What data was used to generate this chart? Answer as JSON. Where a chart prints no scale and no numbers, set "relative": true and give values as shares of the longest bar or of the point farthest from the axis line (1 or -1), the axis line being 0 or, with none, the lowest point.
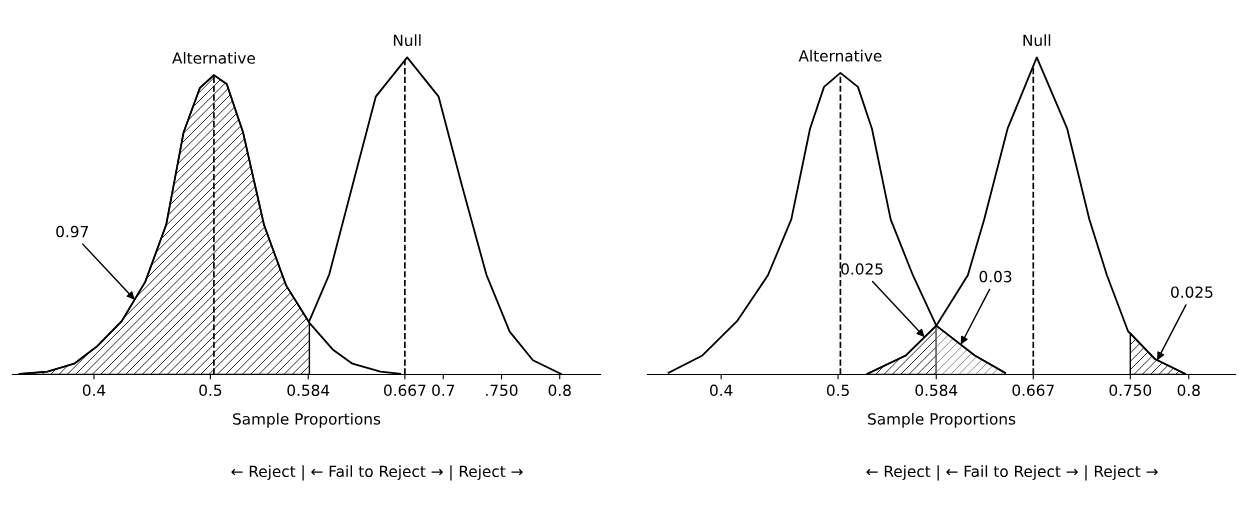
{
  "chart_data": [
    {
      "type": "line",
      "relative": true,
      "xlabel": "Sample Proportions",
      "xlim": [
        0.33,
        0.835
      ],
      "xticks": [
        0.4,
        0.5,
        {
          "value": 0.584,
          "label": "0.584"
        },
        {
          "value": 0.667,
          "label": "0.667"
        },
        0.7,
        {
          "value": 0.75,
          "label": ".750"
        },
        0.8
      ],
      "tick_labels": "x",
      "line_style": "solid",
      "series": [
        {
          "name": "Alternative",
          "color": "#000000",
          "x": [
            0.336,
            0.36,
            0.383,
            0.403,
            0.424,
            0.444,
            0.462,
            0.477,
            0.491,
            0.503,
            0.514,
            0.528,
            0.546,
            0.565,
            0.585,
            0.605,
            0.622,
            0.646,
            0.663
          ],
          "values": [
            0.002,
            0.009,
            0.034,
            0.09,
            0.169,
            0.292,
            0.472,
            0.764,
            0.904,
            0.944,
            0.916,
            0.764,
            0.472,
            0.281,
            0.163,
            0.079,
            0.034,
            0.009,
            0.002
          ]
        },
        {
          "name": "Null",
          "color": "#000000",
          "x": [
            0.585,
            0.602,
            0.622,
            0.642,
            0.669,
            0.696,
            0.716,
            0.737,
            0.757,
            0.777,
            0.801
          ],
          "values": [
            0.169,
            0.315,
            0.596,
            0.876,
            1.0,
            0.876,
            0.596,
            0.315,
            0.135,
            0.045,
            0.002
          ]
        },
        {
          "type": "area",
          "color": "#000000",
          "x": [
            0.336,
            0.36,
            0.383,
            0.403,
            0.424,
            0.444,
            0.462,
            0.477,
            0.491,
            0.503,
            0.514,
            0.528,
            0.546,
            0.565,
            0.585
          ],
          "values": [
            0.002,
            0.009,
            0.034,
            0.09,
            0.169,
            0.292,
            0.472,
            0.764,
            0.904,
            0.944,
            0.916,
            0.764,
            0.472,
            0.281,
            0.163
          ]
        }
      ],
      "ref_lines": [
        {
          "axis": "x",
          "value": 0.503,
          "color": "#000000",
          "line_style": "dashed"
        },
        {
          "axis": "x",
          "value": 0.667,
          "color": "#000000",
          "line_style": "dashed"
        }
      ],
      "annotations": [
        {
          "text": "0.97",
          "x": 0.435,
          "y": 0.236
        },
        "← Reject | ← Fail to Reject → | Reject →"
      ]
    },
    {
      "type": "line",
      "relative": true,
      "xlabel": "Sample Proportions",
      "xlim": [
        0.337,
        0.84
      ],
      "xticks": [
        0.4,
        0.5,
        {
          "value": 0.584,
          "label": "0.584"
        },
        {
          "value": 0.667,
          "label": "0.667"
        },
        {
          "value": 0.75,
          "label": "0.750"
        },
        0.8
      ],
      "tick_labels": "x",
      "line_style": "solid",
      "series": [
        {
          "name": "Alternative",
          "color": "#000000",
          "x": [
            0.355,
            0.384,
            0.414,
            0.44,
            0.46,
            0.476,
            0.488,
            0.502,
            0.517,
            0.529,
            0.545,
            0.564,
            0.584,
            0.617,
            0.643
          ],
          "values": [
            0.005,
            0.06,
            0.17,
            0.313,
            0.489,
            0.775,
            0.907,
            0.951,
            0.907,
            0.775,
            0.489,
            0.313,
            0.154,
            0.06,
            0.005
          ]
        },
        {
          "name": "Null",
          "color": "#000000",
          "x": [
            0.525,
            0.558,
            0.584,
            0.611,
            0.625,
            0.645,
            0.67,
            0.696,
            0.715,
            0.73,
            0.748,
            0.771,
            0.797
          ],
          "values": [
            0.002,
            0.06,
            0.154,
            0.313,
            0.489,
            0.775,
            1.0,
            0.775,
            0.489,
            0.313,
            0.137,
            0.049,
            0.002
          ]
        },
        {
          "type": "area",
          "color": "#000000",
          "x": [
            0.525,
            0.558,
            0.584
          ],
          "values": [
            0.002,
            0.06,
            0.154
          ]
        },
        {
          "type": "area",
          "color": "#777777",
          "x": [
            0.584,
            0.617,
            0.643
          ],
          "values": [
            0.154,
            0.06,
            0.005
          ]
        },
        {
          "type": "area",
          "color": "#000000",
          "x": [
            0.75,
            0.771,
            0.797
          ],
          "values": [
            0.13,
            0.049,
            0.002
          ]
        }
      ],
      "ref_lines": [
        {
          "axis": "x",
          "value": 0.502,
          "color": "#000000",
          "line_style": "dashed"
        },
        {
          "axis": "x",
          "value": 0.667,
          "color": "#000000",
          "line_style": "dashed"
        }
      ],
      "annotations": [
        {
          "text": "0.025",
          "x": 0.574,
          "y": 0.118
        },
        {
          "text": "0.03",
          "x": 0.605,
          "y": 0.094
        },
        {
          "text": "0.025",
          "x": 0.773,
          "y": 0.045
        },
        "← Reject | ← Fail to Reject → | Reject →"
      ]
    }
  ]
}
